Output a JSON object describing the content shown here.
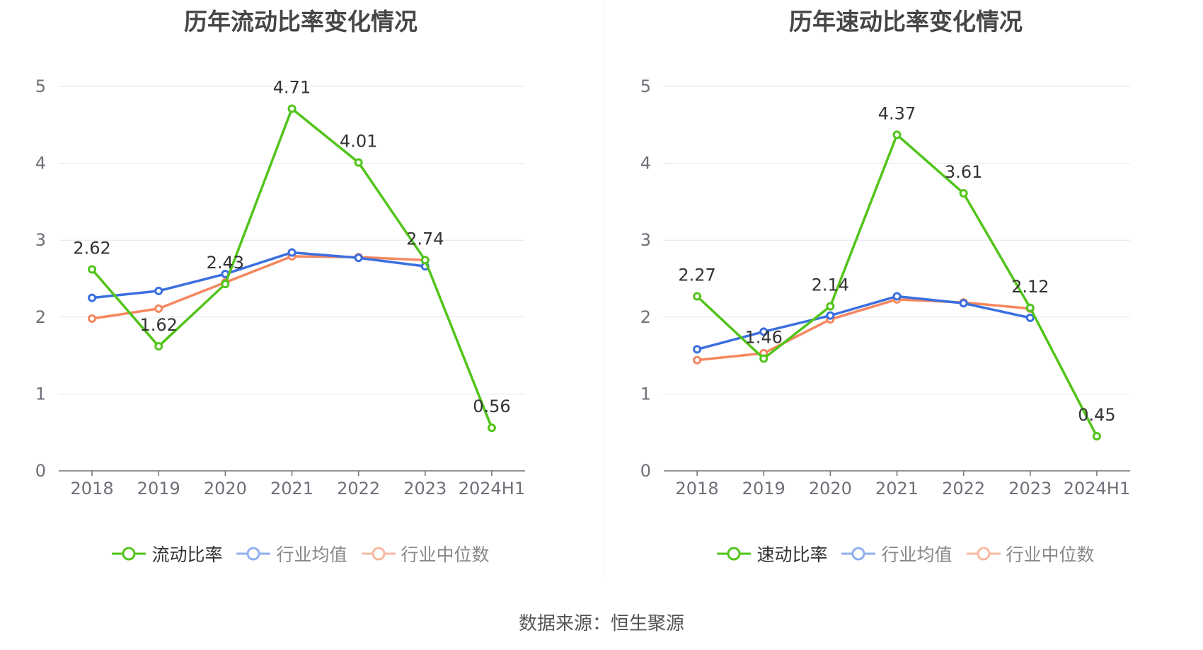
{
  "chart_data": [
    {
      "type": "line",
      "title": "历年流动比率变化情况",
      "categories": [
        "2018",
        "2019",
        "2020",
        "2021",
        "2022",
        "2023",
        "2024H1"
      ],
      "ylim": [
        0,
        5
      ],
      "yticks": [
        "0",
        "1",
        "2",
        "3",
        "4",
        "5"
      ],
      "grid": true,
      "legend_position": "bottom",
      "series": [
        {
          "name": "流动比率",
          "color": "#52c41a",
          "values": [
            2.62,
            1.62,
            2.43,
            4.71,
            4.01,
            2.74,
            0.56
          ],
          "labels": [
            "2.62",
            "1.62",
            "2.43",
            "4.71",
            "4.01",
            "2.74",
            "0.56"
          ]
        },
        {
          "name": "行业均值",
          "color": "#3b6fe0",
          "values": [
            2.25,
            2.34,
            2.56,
            2.84,
            2.77,
            2.66,
            null
          ]
        },
        {
          "name": "行业中位数",
          "color": "#f5875f",
          "values": [
            1.98,
            2.11,
            2.45,
            2.79,
            2.78,
            2.74,
            null
          ]
        }
      ]
    },
    {
      "type": "line",
      "title": "历年速动比率变化情况",
      "categories": [
        "2018",
        "2019",
        "2020",
        "2021",
        "2022",
        "2023",
        "2024H1"
      ],
      "ylim": [
        0,
        5
      ],
      "yticks": [
        "0",
        "1",
        "2",
        "3",
        "4",
        "5"
      ],
      "grid": true,
      "legend_position": "bottom",
      "series": [
        {
          "name": "速动比率",
          "color": "#52c41a",
          "values": [
            2.27,
            1.46,
            2.14,
            4.37,
            3.61,
            2.12,
            0.45
          ],
          "labels": [
            "2.27",
            "1.46",
            "2.14",
            "4.37",
            "3.61",
            "2.12",
            "0.45"
          ]
        },
        {
          "name": "行业均值",
          "color": "#3b6fe0",
          "values": [
            1.58,
            1.81,
            2.02,
            2.27,
            2.18,
            1.99,
            null
          ]
        },
        {
          "name": "行业中位数",
          "color": "#f5875f",
          "values": [
            1.44,
            1.53,
            1.97,
            2.23,
            2.19,
            2.11,
            null
          ]
        }
      ]
    }
  ],
  "source": "数据来源：恒生聚源"
}
